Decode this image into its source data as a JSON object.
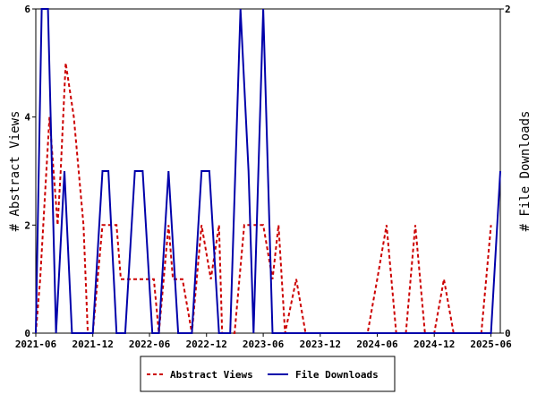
{
  "chart_data": {
    "type": "line",
    "left_axis_label": "# Abstract Views",
    "right_axis_label": "# File Downloads",
    "y_left_range": [
      0,
      6
    ],
    "y_right_range": [
      0,
      2
    ],
    "y_left_ticks": [
      "0",
      "2",
      "4",
      "6"
    ],
    "y_right_ticks": [
      "0",
      "2"
    ],
    "x_range": [
      "2021-06",
      "2025-07"
    ],
    "x_ticks": [
      "2021-06",
      "2021-12",
      "2022-06",
      "2022-12",
      "2023-06",
      "2023-12",
      "2024-06",
      "2024-12",
      "2025-06"
    ],
    "grid": false,
    "legend_placement": "bottom",
    "series": [
      {
        "name": "Abstract Views",
        "axis": "left",
        "color": "#cc0000",
        "style": "dashed",
        "points": [
          [
            "2021-06-01",
            0
          ],
          [
            "2021-06-15",
            1
          ],
          [
            "2021-07-05",
            3
          ],
          [
            "2021-07-15",
            4
          ],
          [
            "2021-08-10",
            2
          ],
          [
            "2021-08-20",
            3
          ],
          [
            "2021-09-05",
            5
          ],
          [
            "2021-10-01",
            4
          ],
          [
            "2021-11-01",
            2
          ],
          [
            "2021-11-15",
            0
          ],
          [
            "2021-12-01",
            0
          ],
          [
            "2022-01-01",
            2
          ],
          [
            "2022-02-01",
            2
          ],
          [
            "2022-02-15",
            2
          ],
          [
            "2022-03-01",
            1
          ],
          [
            "2022-06-01",
            1
          ],
          [
            "2022-06-15",
            1
          ],
          [
            "2022-07-01",
            0
          ],
          [
            "2022-08-01",
            2
          ],
          [
            "2022-08-15",
            1
          ],
          [
            "2022-09-15",
            1
          ],
          [
            "2022-10-15",
            0
          ],
          [
            "2022-11-15",
            2
          ],
          [
            "2022-12-15",
            1
          ],
          [
            "2023-01-10",
            2
          ],
          [
            "2023-01-20",
            0
          ],
          [
            "2023-03-01",
            0
          ],
          [
            "2023-04-01",
            2
          ],
          [
            "2023-05-15",
            2
          ],
          [
            "2023-06-01",
            2
          ],
          [
            "2023-07-01",
            1
          ],
          [
            "2023-07-20",
            2
          ],
          [
            "2023-08-10",
            0
          ],
          [
            "2023-09-15",
            1
          ],
          [
            "2023-10-15",
            0
          ],
          [
            "2024-05-01",
            0
          ],
          [
            "2024-06-01",
            1
          ],
          [
            "2024-07-01",
            2
          ],
          [
            "2024-08-01",
            0
          ],
          [
            "2024-09-01",
            0
          ],
          [
            "2024-10-01",
            2
          ],
          [
            "2024-11-01",
            0
          ],
          [
            "2024-12-01",
            0
          ],
          [
            "2025-01-01",
            1
          ],
          [
            "2025-02-01",
            0
          ],
          [
            "2025-05-01",
            0
          ],
          [
            "2025-06-01",
            2
          ]
        ]
      },
      {
        "name": "File Downloads",
        "axis": "right",
        "color": "#0000aa",
        "style": "solid",
        "points": [
          [
            "2021-06-01",
            0
          ],
          [
            "2021-06-20",
            2
          ],
          [
            "2021-07-10",
            2
          ],
          [
            "2021-08-05",
            0
          ],
          [
            "2021-09-01",
            1
          ],
          [
            "2021-09-25",
            0
          ],
          [
            "2021-10-15",
            0
          ],
          [
            "2021-12-01",
            0
          ],
          [
            "2022-01-01",
            1
          ],
          [
            "2022-01-20",
            1
          ],
          [
            "2022-02-15",
            0
          ],
          [
            "2022-03-15",
            0
          ],
          [
            "2022-04-15",
            1
          ],
          [
            "2022-05-10",
            1
          ],
          [
            "2022-06-10",
            0
          ],
          [
            "2022-07-01",
            0
          ],
          [
            "2022-08-01",
            1
          ],
          [
            "2022-09-01",
            0
          ],
          [
            "2022-10-15",
            0
          ],
          [
            "2022-11-15",
            1
          ],
          [
            "2022-12-10",
            1
          ],
          [
            "2023-01-10",
            0
          ],
          [
            "2023-02-15",
            0
          ],
          [
            "2023-03-20",
            2
          ],
          [
            "2023-04-15",
            1
          ],
          [
            "2023-05-01",
            0
          ],
          [
            "2023-06-01",
            2
          ],
          [
            "2023-07-01",
            0
          ],
          [
            "2025-06-01",
            0
          ],
          [
            "2025-07-01",
            1
          ]
        ]
      }
    ]
  }
}
